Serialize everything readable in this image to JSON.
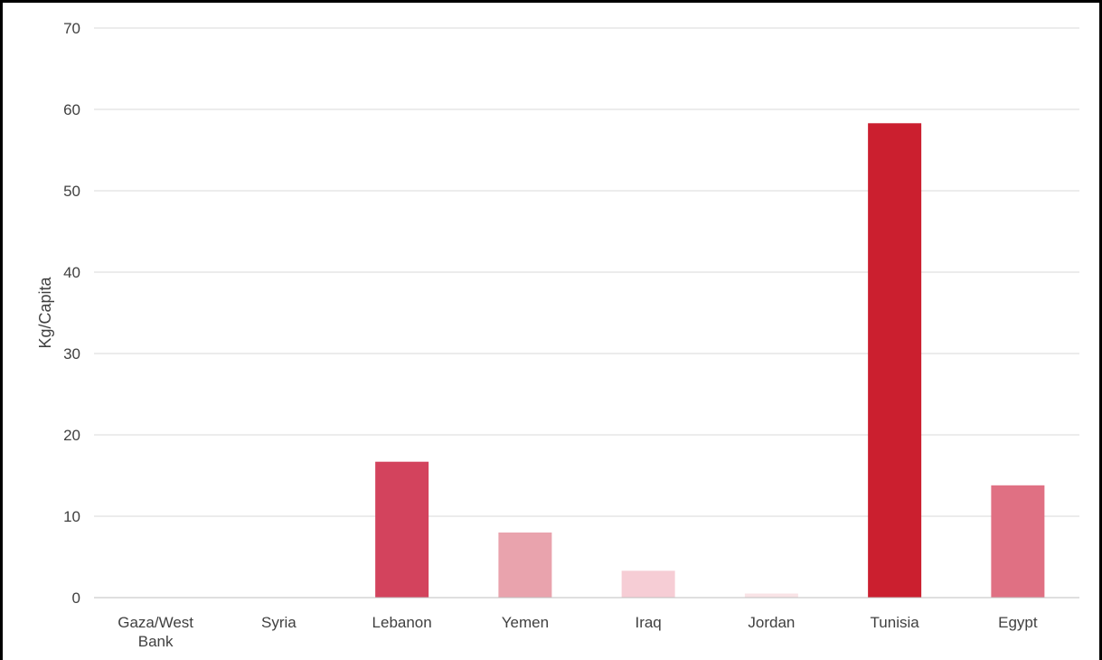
{
  "chart_data": {
    "type": "bar",
    "title": "",
    "xlabel": "",
    "ylabel": "Kg/Capita",
    "ylim": [
      0,
      70
    ],
    "yticks": [
      "0",
      "10",
      "20",
      "30",
      "40",
      "50",
      "60",
      "70"
    ],
    "grid": true,
    "categories": [
      {
        "label": [
          "Gaza/West",
          "Bank"
        ],
        "value": 0,
        "color": "#f9e3e6"
      },
      {
        "label": [
          "Syria"
        ],
        "value": 0,
        "color": "#f9e3e6"
      },
      {
        "label": [
          "Lebanon"
        ],
        "value": 16.7,
        "color": "#d3435d"
      },
      {
        "label": [
          "Yemen"
        ],
        "value": 8.0,
        "color": "#e9a3ad"
      },
      {
        "label": [
          "Iraq"
        ],
        "value": 3.3,
        "color": "#f6cdd5"
      },
      {
        "label": [
          "Jordan"
        ],
        "value": 0.5,
        "color": "#f9e3e6"
      },
      {
        "label": [
          "Tunisia"
        ],
        "value": 58.3,
        "color": "#cb1f2f"
      },
      {
        "label": [
          "Egypt"
        ],
        "value": 13.8,
        "color": "#e07083"
      }
    ],
    "colors": {
      "grid": "#d9d9d9",
      "axis": "#bfbfbf",
      "text": "#404040"
    }
  }
}
